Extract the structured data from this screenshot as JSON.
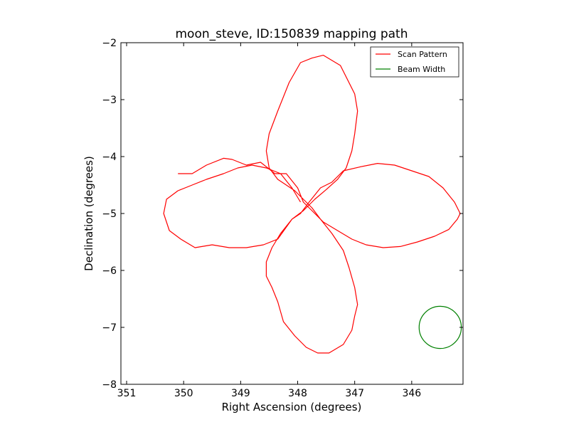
{
  "chart_data": {
    "type": "line",
    "title": "moon_steve, ID:150839 mapping path",
    "xlabel": "Right Ascension (degrees)",
    "ylabel": "Declination (degrees)",
    "xlim": [
      351.1,
      345.1
    ],
    "ylim": [
      -8,
      -2
    ],
    "xticks": [
      351,
      350,
      349,
      348,
      347,
      346
    ],
    "yticks": [
      -2,
      -3,
      -4,
      -5,
      -6,
      -7,
      -8
    ],
    "xtick_labels": [
      "351",
      "350",
      "349",
      "348",
      "347",
      "346"
    ],
    "ytick_labels": [
      "−2",
      "−3",
      "−4",
      "−5",
      "−6",
      "−7",
      "−8"
    ],
    "legend_position": "top-right",
    "series": [
      {
        "name": "Scan Pattern",
        "color": "#ff0000",
        "x": [
          350.1,
          349.85,
          349.6,
          349.3,
          349.15,
          348.9,
          348.65,
          348.4,
          348.2,
          348.0,
          347.9,
          347.75,
          347.55,
          347.3,
          347.05,
          346.8,
          346.5,
          346.2,
          345.9,
          345.6,
          345.35,
          345.2,
          345.15,
          345.25,
          345.45,
          345.7,
          346.0,
          346.3,
          346.6,
          346.9,
          347.2,
          347.4,
          347.6,
          347.8,
          347.95,
          348.1,
          348.3,
          348.45,
          348.55,
          348.55,
          348.45,
          348.35,
          348.25,
          348.05,
          347.85,
          347.65,
          347.45,
          347.2,
          347.05,
          347.0,
          346.95,
          347.0,
          347.1,
          347.2,
          347.4,
          347.6,
          347.75,
          347.9,
          348.05,
          348.2,
          348.35,
          348.5,
          348.55,
          348.5,
          348.35,
          348.15,
          347.95,
          347.75,
          347.55,
          347.25,
          347.0,
          346.95,
          347.0,
          347.05,
          347.15,
          347.3,
          347.5,
          347.7,
          347.9,
          348.1,
          348.35,
          348.6,
          348.9,
          349.2,
          349.5,
          349.8,
          350.05,
          350.25,
          350.35,
          350.3,
          350.1,
          349.85,
          349.6,
          349.3,
          349.05,
          348.8,
          348.55,
          348.3,
          348.1,
          347.95
        ],
        "y": [
          -4.3,
          -4.3,
          -4.15,
          -4.03,
          -4.05,
          -4.15,
          -4.1,
          -4.3,
          -4.3,
          -4.55,
          -4.8,
          -4.95,
          -5.15,
          -5.3,
          -5.45,
          -5.55,
          -5.6,
          -5.58,
          -5.5,
          -5.4,
          -5.28,
          -5.1,
          -5.0,
          -4.8,
          -4.55,
          -4.35,
          -4.25,
          -4.15,
          -4.12,
          -4.18,
          -4.25,
          -4.45,
          -4.55,
          -4.8,
          -5.0,
          -5.1,
          -5.35,
          -5.6,
          -5.85,
          -6.1,
          -6.3,
          -6.55,
          -6.9,
          -7.15,
          -7.35,
          -7.45,
          -7.45,
          -7.3,
          -7.05,
          -6.8,
          -6.6,
          -6.3,
          -5.95,
          -5.65,
          -5.35,
          -5.1,
          -4.9,
          -4.75,
          -4.6,
          -4.5,
          -4.4,
          -4.2,
          -3.9,
          -3.6,
          -3.2,
          -2.7,
          -2.35,
          -2.27,
          -2.22,
          -2.4,
          -2.9,
          -3.2,
          -3.6,
          -3.9,
          -4.2,
          -4.4,
          -4.58,
          -4.75,
          -4.95,
          -5.1,
          -5.45,
          -5.55,
          -5.6,
          -5.6,
          -5.55,
          -5.6,
          -5.45,
          -5.3,
          -5.0,
          -4.75,
          -4.6,
          -4.5,
          -4.4,
          -4.3,
          -4.2,
          -4.15,
          -4.2,
          -4.3,
          -4.55,
          -4.8
        ]
      },
      {
        "name": "Beam Width",
        "color": "#008000",
        "shape": "circle",
        "center": [
          345.5,
          -7.0
        ],
        "radius_deg": 0.37
      }
    ]
  }
}
